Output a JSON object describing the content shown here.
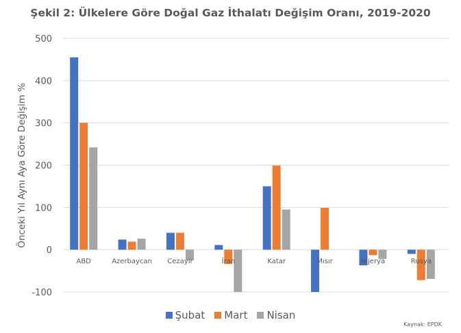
{
  "chart_data": {
    "type": "bar",
    "title": "Şekil 2: Ülkelere Göre Doğal Gaz İthalatı Değişim Oranı, 2019-2020",
    "xlabel": "",
    "ylabel": "Önceki Yıl Aynı Aya Göre Değişim %",
    "ylim": [
      -100,
      500
    ],
    "yticks": [
      "500",
      "400",
      "300",
      "200",
      "100",
      "0",
      "-100"
    ],
    "ytick_values": [
      500,
      400,
      300,
      200,
      100,
      0,
      -100
    ],
    "grid": true,
    "legend_position": "bottom",
    "categories": [
      "ABD",
      "Azerbaycan",
      "Cezayir",
      "İran",
      "Katar",
      "Mısır",
      "Nijerya",
      "Rusya"
    ],
    "series": [
      {
        "name": "Şubat",
        "color": "#4472C4",
        "values": [
          455,
          24,
          40,
          11,
          150,
          -100,
          -37,
          -10
        ]
      },
      {
        "name": "Mart",
        "color": "#ED7D31",
        "values": [
          300,
          19,
          40,
          -34,
          199,
          99,
          -13,
          -72
        ]
      },
      {
        "name": "Nisan",
        "color": "#A5A5A5",
        "values": [
          242,
          26,
          -25,
          -100,
          95,
          0,
          -22,
          -69
        ]
      }
    ]
  },
  "source": "Kaynak: EPDK"
}
